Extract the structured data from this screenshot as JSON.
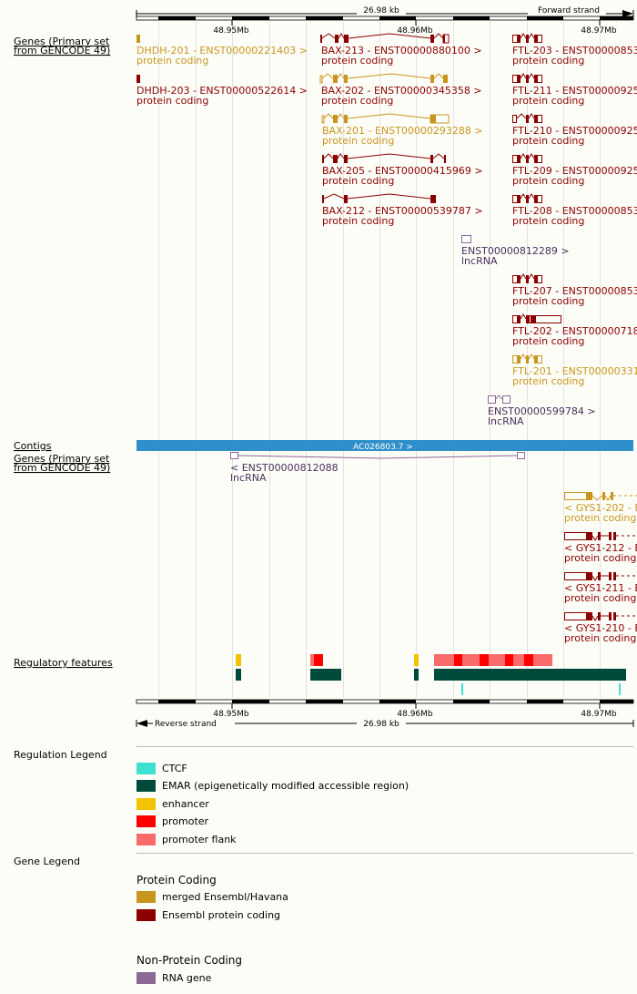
{
  "colors": {
    "merged": "#c8961e",
    "ensembl_coding": "#8b0000",
    "rna_gene": "#8a6a95",
    "lncrna_text": "#4b2f5a",
    "contig": "#2f8fca",
    "ctcf": "#40e0d0",
    "emar": "#004a3c",
    "enhancer": "#f2c300",
    "promoter": "#ff0000",
    "promoter_flank": "#f96a6a"
  },
  "ruler": {
    "scale_label": "26.98 kb",
    "forward_strand": "Forward strand",
    "reverse_strand": "Reverse strand",
    "ticks": [
      "48.95Mb",
      "48.96Mb",
      "48.97Mb"
    ]
  },
  "tracks": {
    "genes_forward_label": "Genes (Primary set from GENCODE 49)",
    "contigs_label": "Contigs",
    "contig_name": "AC026803.7 >",
    "genes_reverse_label": "Genes (Primary set from GENCODE 49)",
    "regulatory_label": "Regulatory features"
  },
  "genes_forward": [
    {
      "name": "DHDH-201 - ENST00000221403 >",
      "biotype": "protein coding",
      "color": "merged"
    },
    {
      "name": "DHDH-203 - ENST00000522614 >",
      "biotype": "protein coding",
      "color": "ensembl_coding"
    },
    {
      "name": "BAX-213 - ENST00000880100 >",
      "biotype": "protein coding",
      "color": "ensembl_coding"
    },
    {
      "name": "BAX-202 - ENST00000345358 >",
      "biotype": "protein coding",
      "color": "merged"
    },
    {
      "name": "BAX-201 - ENST00000293288 >",
      "biotype": "protein coding",
      "color": "merged"
    },
    {
      "name": "BAX-205 - ENST00000415969 >",
      "biotype": "protein coding",
      "color": "ensembl_coding"
    },
    {
      "name": "BAX-212 - ENST00000539787 >",
      "biotype": "protein coding",
      "color": "ensembl_coding"
    },
    {
      "name": "ENST00000812289 >",
      "biotype": "lncRNA",
      "color": "rna_gene"
    },
    {
      "name": "FTL-203 - ENST00000853",
      "biotype": "protein coding",
      "color": "ensembl_coding"
    },
    {
      "name": "FTL-211 - ENST00000925",
      "biotype": "protein coding",
      "color": "ensembl_coding"
    },
    {
      "name": "FTL-210 - ENST00000925",
      "biotype": "protein coding",
      "color": "ensembl_coding"
    },
    {
      "name": "FTL-209 - ENST00000925",
      "biotype": "protein coding",
      "color": "ensembl_coding"
    },
    {
      "name": "FTL-208 - ENST00000853",
      "biotype": "protein coding",
      "color": "ensembl_coding"
    },
    {
      "name": "FTL-207 - ENST00000853",
      "biotype": "protein coding",
      "color": "ensembl_coding"
    },
    {
      "name": "FTL-202 - ENST00000718",
      "biotype": "protein coding",
      "color": "ensembl_coding"
    },
    {
      "name": "FTL-201 - ENST00000331",
      "biotype": "protein coding",
      "color": "merged"
    },
    {
      "name": "ENST00000599784 >",
      "biotype": "lncRNA",
      "color": "rna_gene"
    }
  ],
  "genes_reverse": [
    {
      "name": "< ENST00000812088",
      "biotype": "lncRNA",
      "color": "rna_gene"
    },
    {
      "name": "< GYS1-202 - E",
      "biotype": "protein coding",
      "color": "merged"
    },
    {
      "name": "< GYS1-212 - E",
      "biotype": "protein coding",
      "color": "ensembl_coding"
    },
    {
      "name": "< GYS1-211 - E",
      "biotype": "protein coding",
      "color": "ensembl_coding"
    },
    {
      "name": "< GYS1-210 - E",
      "biotype": "protein coding",
      "color": "ensembl_coding"
    }
  ],
  "legend": {
    "regulation_title": "Regulation Legend",
    "regulation_items": [
      {
        "label": "CTCF",
        "color": "#40e0d0"
      },
      {
        "label": "EMAR (epigenetically modified accessible region)",
        "color": "#004a3c"
      },
      {
        "label": "enhancer",
        "color": "#f2c300"
      },
      {
        "label": "promoter",
        "color": "#ff0000"
      },
      {
        "label": "promoter flank",
        "color": "#f96a6a"
      }
    ],
    "gene_title": "Gene Legend",
    "protein_coding_title": "Protein Coding",
    "protein_coding_items": [
      {
        "label": "merged Ensembl/Havana",
        "color": "#c8961e"
      },
      {
        "label": "Ensembl protein coding",
        "color": "#8b0000"
      }
    ],
    "non_coding_title": "Non-Protein Coding",
    "non_coding_items": [
      {
        "label": "RNA gene",
        "color": "#8a6a95"
      }
    ]
  }
}
